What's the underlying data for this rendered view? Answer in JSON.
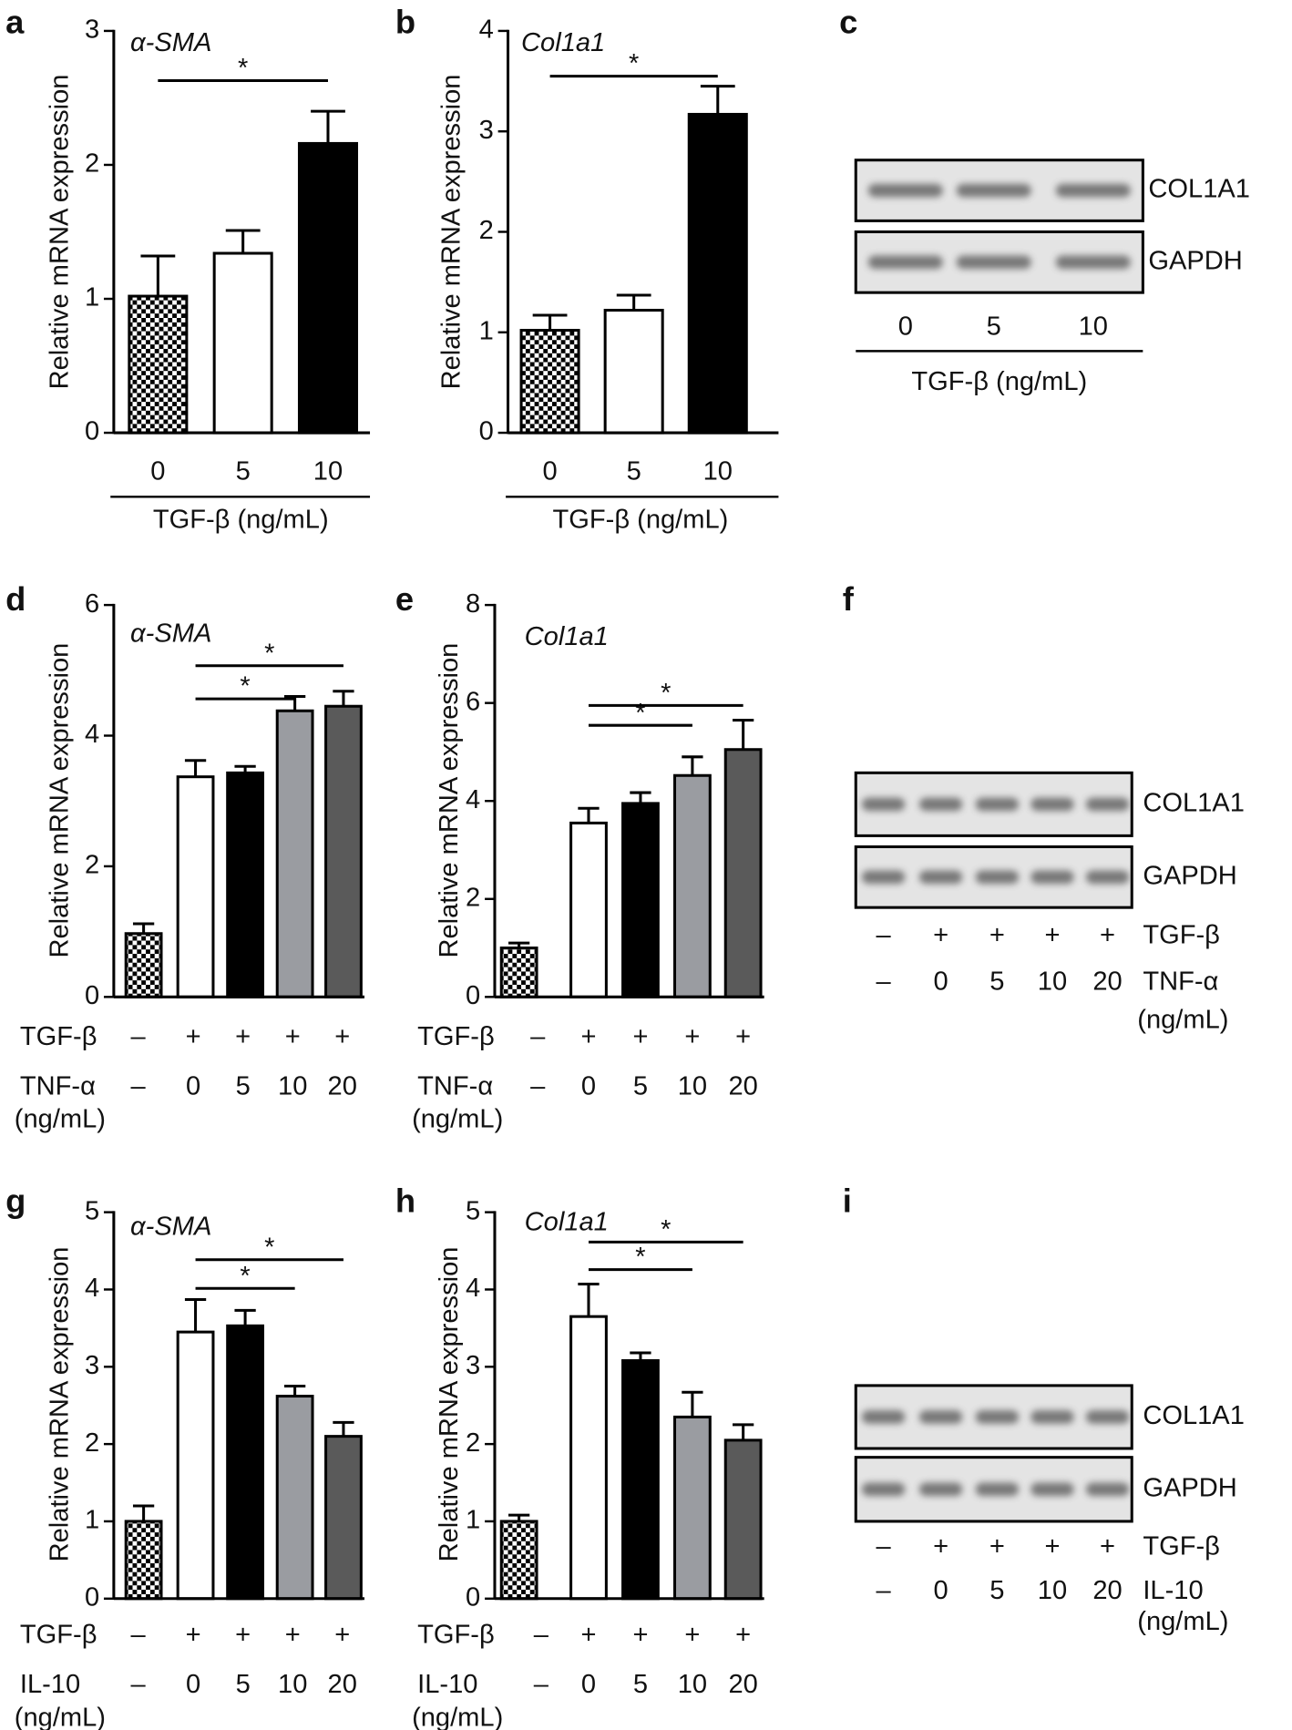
{
  "chart_data": [
    {
      "type": "bar",
      "panel": "a",
      "title": "α-SMA",
      "ylabel": "Relative mRNA expression",
      "ylim": [
        0,
        3
      ],
      "yticks": [
        0,
        1,
        2,
        3
      ],
      "categories": [
        "0",
        "5",
        "10"
      ],
      "xlabel": "TGF-β (ng/mL)",
      "values": [
        1.02,
        1.34,
        2.16
      ],
      "errors": [
        0.3,
        0.17,
        0.24
      ],
      "fills": [
        "checker",
        "#ffffff",
        "#000000"
      ],
      "significance": [
        {
          "between": [
            0,
            2
          ],
          "label": "*"
        }
      ]
    },
    {
      "type": "bar",
      "panel": "b",
      "title": "Col1a1",
      "ylabel": "Relative mRNA expression",
      "ylim": [
        0,
        4
      ],
      "yticks": [
        0,
        1,
        2,
        3,
        4
      ],
      "categories": [
        "0",
        "5",
        "10"
      ],
      "xlabel": "TGF-β (ng/mL)",
      "values": [
        1.02,
        1.22,
        3.17
      ],
      "errors": [
        0.15,
        0.15,
        0.28
      ],
      "fills": [
        "checker",
        "#ffffff",
        "#000000"
      ],
      "significance": [
        {
          "between": [
            0,
            2
          ],
          "label": "*"
        }
      ]
    },
    {
      "type": "bar",
      "panel": "d",
      "title": "α-SMA",
      "ylabel": "Relative mRNA expression",
      "ylim": [
        0,
        6
      ],
      "yticks": [
        0,
        2,
        4,
        6
      ],
      "rows": [
        {
          "label": "TGF-β",
          "cells": [
            "–",
            "+",
            "+",
            "+",
            "+"
          ]
        },
        {
          "label": "TNF-α",
          "unit": "(ng/mL)",
          "cells": [
            "–",
            "0",
            "5",
            "10",
            "20"
          ]
        }
      ],
      "values": [
        0.97,
        3.37,
        3.43,
        4.38,
        4.45
      ],
      "errors": [
        0.15,
        0.25,
        0.1,
        0.22,
        0.23
      ],
      "fills": [
        "checker",
        "#ffffff",
        "#000000",
        "#9a9ca1",
        "#5a5a5a"
      ],
      "significance": [
        {
          "between": [
            1,
            3
          ],
          "label": "*"
        },
        {
          "between": [
            1,
            4
          ],
          "label": "*"
        }
      ]
    },
    {
      "type": "bar",
      "panel": "e",
      "title": "Col1a1",
      "ylabel": "Relative mRNA expression",
      "ylim": [
        0,
        8
      ],
      "yticks": [
        0,
        2,
        4,
        6,
        8
      ],
      "rows": [
        {
          "label": "TGF-β",
          "cells": [
            "–",
            "+",
            "+",
            "+",
            "+"
          ]
        },
        {
          "label": "TNF-α",
          "unit": "(ng/mL)",
          "cells": [
            "–",
            "0",
            "5",
            "10",
            "20"
          ]
        }
      ],
      "values": [
        1.0,
        3.55,
        3.95,
        4.52,
        5.05
      ],
      "errors": [
        0.1,
        0.3,
        0.22,
        0.38,
        0.6
      ],
      "fills": [
        "checker",
        "#ffffff",
        "#000000",
        "#9a9ca1",
        "#5a5a5a"
      ],
      "significance": [
        {
          "between": [
            1,
            3
          ],
          "label": "*"
        },
        {
          "between": [
            1,
            4
          ],
          "label": "*"
        }
      ]
    },
    {
      "type": "bar",
      "panel": "g",
      "title": "α-SMA",
      "ylabel": "Relative mRNA expression",
      "ylim": [
        0,
        5
      ],
      "yticks": [
        0,
        1,
        2,
        3,
        4,
        5
      ],
      "rows": [
        {
          "label": "TGF-β",
          "cells": [
            "–",
            "+",
            "+",
            "+",
            "+"
          ]
        },
        {
          "label": "IL-10",
          "unit": "(ng/mL)",
          "cells": [
            "–",
            "0",
            "5",
            "10",
            "20"
          ]
        }
      ],
      "values": [
        1.0,
        3.45,
        3.53,
        2.62,
        2.1
      ],
      "errors": [
        0.2,
        0.42,
        0.2,
        0.13,
        0.18
      ],
      "fills": [
        "checker",
        "#ffffff",
        "#000000",
        "#9a9ca1",
        "#5a5a5a"
      ],
      "significance": [
        {
          "between": [
            1,
            3
          ],
          "label": "*"
        },
        {
          "between": [
            1,
            4
          ],
          "label": "*"
        }
      ]
    },
    {
      "type": "bar",
      "panel": "h",
      "title": "Col1a1",
      "ylabel": "Relative mRNA expression",
      "ylim": [
        0,
        5
      ],
      "yticks": [
        0,
        1,
        2,
        3,
        4,
        5
      ],
      "rows": [
        {
          "label": "TGF-β",
          "cells": [
            "–",
            "+",
            "+",
            "+",
            "+"
          ]
        },
        {
          "label": "IL-10",
          "unit": "(ng/mL)",
          "cells": [
            "–",
            "0",
            "5",
            "10",
            "20"
          ]
        }
      ],
      "values": [
        1.0,
        3.65,
        3.08,
        2.35,
        2.05
      ],
      "errors": [
        0.08,
        0.42,
        0.1,
        0.32,
        0.2
      ],
      "fills": [
        "checker",
        "#ffffff",
        "#000000",
        "#9a9ca1",
        "#5a5a5a"
      ],
      "significance": [
        {
          "between": [
            1,
            3
          ],
          "label": "*"
        },
        {
          "between": [
            1,
            4
          ],
          "label": "*"
        }
      ]
    }
  ],
  "blots": [
    {
      "panel": "c",
      "bands": [
        "COL1A1",
        "GAPDH"
      ],
      "lanes": [
        "0",
        "5",
        "10"
      ],
      "xlabel": "TGF-β (ng/mL)"
    },
    {
      "panel": "f",
      "bands": [
        "COL1A1",
        "GAPDH"
      ],
      "rows": [
        {
          "label": "TGF-β",
          "cells": [
            "–",
            "+",
            "+",
            "+",
            "+"
          ]
        },
        {
          "label": "TNF-α",
          "unit": "(ng/mL)",
          "cells": [
            "–",
            "0",
            "5",
            "10",
            "20"
          ]
        }
      ]
    },
    {
      "panel": "i",
      "bands": [
        "COL1A1",
        "GAPDH"
      ],
      "rows": [
        {
          "label": "TGF-β",
          "cells": [
            "–",
            "+",
            "+",
            "+",
            "+"
          ]
        },
        {
          "label": "IL-10",
          "unit": "(ng/mL)",
          "cells": [
            "–",
            "0",
            "5",
            "10",
            "20"
          ]
        }
      ]
    }
  ]
}
